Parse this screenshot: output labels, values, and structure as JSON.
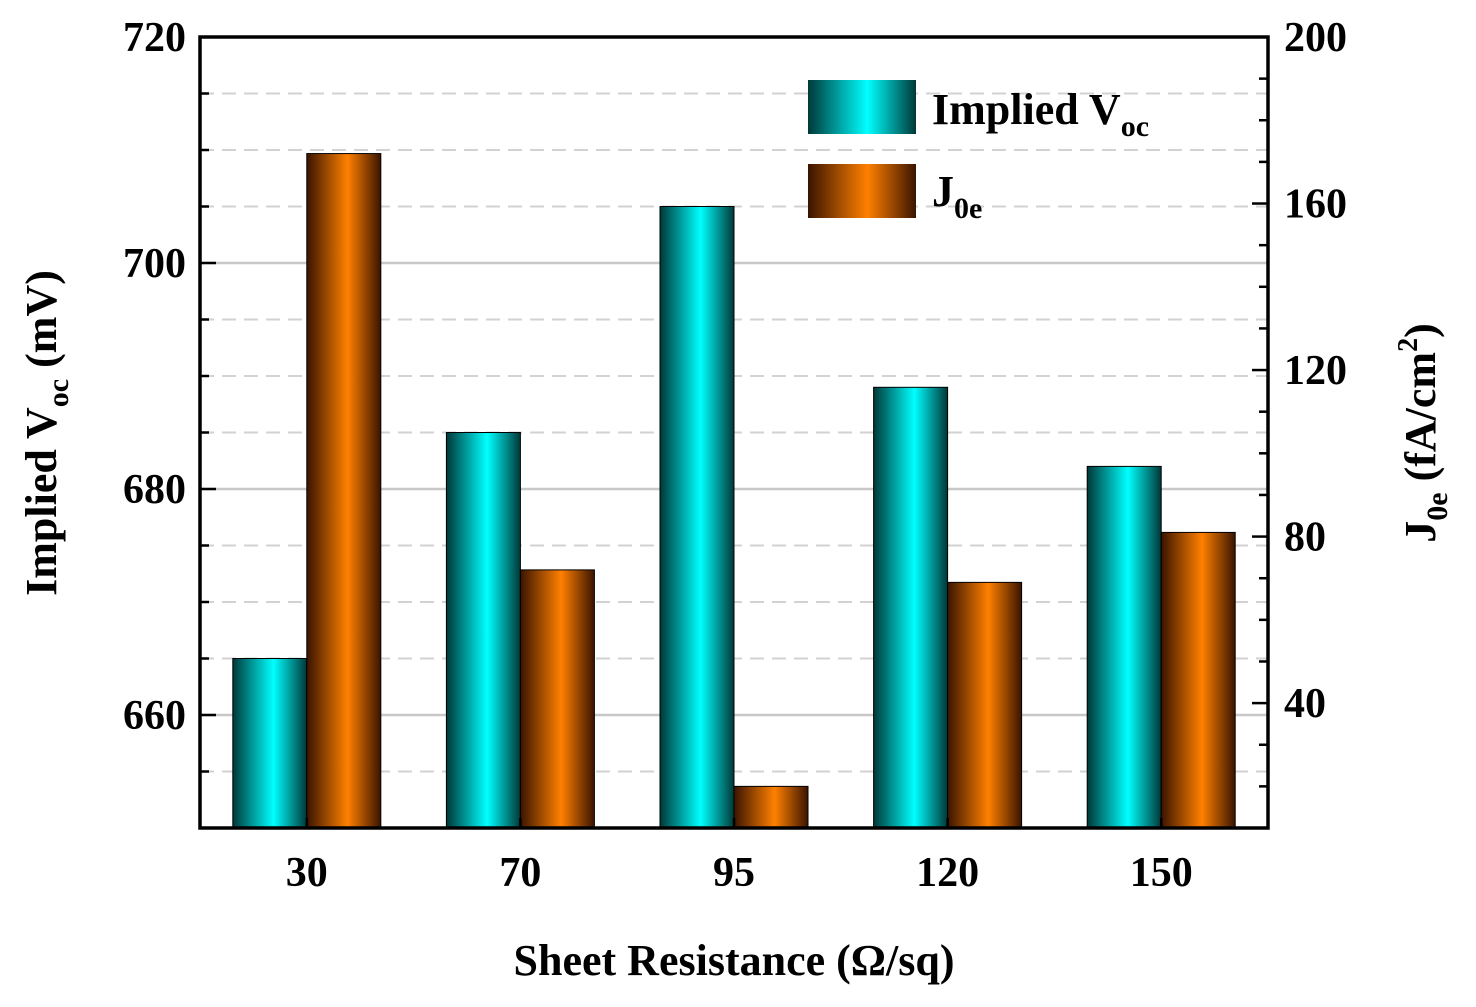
{
  "chart_data": {
    "type": "bar",
    "title": "",
    "xlabel": "Sheet Resistance (Ω/sq)",
    "categories": [
      "30",
      "70",
      "95",
      "120",
      "150"
    ],
    "series": [
      {
        "name": "Implied Voc",
        "axis": "left",
        "values": [
          665,
          685,
          705,
          689,
          682
        ],
        "color_light": "#00ffff",
        "color_dark": "#003838"
      },
      {
        "name": "J0e",
        "axis": "right",
        "values": [
          172,
          72,
          20,
          69,
          81
        ],
        "color_light": "#ff8000",
        "color_dark": "#3a1400"
      }
    ],
    "left_axis": {
      "label_main": "Implied V",
      "label_sub": "oc",
      "label_unit": " (mV)",
      "range": [
        650,
        720
      ],
      "ticks": [
        660,
        680,
        700,
        720
      ]
    },
    "right_axis": {
      "label_main": "J",
      "label_sub": "0e",
      "label_unit": " (fA/cm",
      "label_sup": "2",
      "label_close": ")",
      "range": [
        10,
        200
      ],
      "ticks": [
        40,
        80,
        120,
        160,
        200
      ]
    },
    "legend": {
      "position": "top-right",
      "items": [
        {
          "main": "Implied V",
          "sub": "oc"
        },
        {
          "main": "J",
          "sub": "0e"
        }
      ]
    },
    "grid": true
  }
}
